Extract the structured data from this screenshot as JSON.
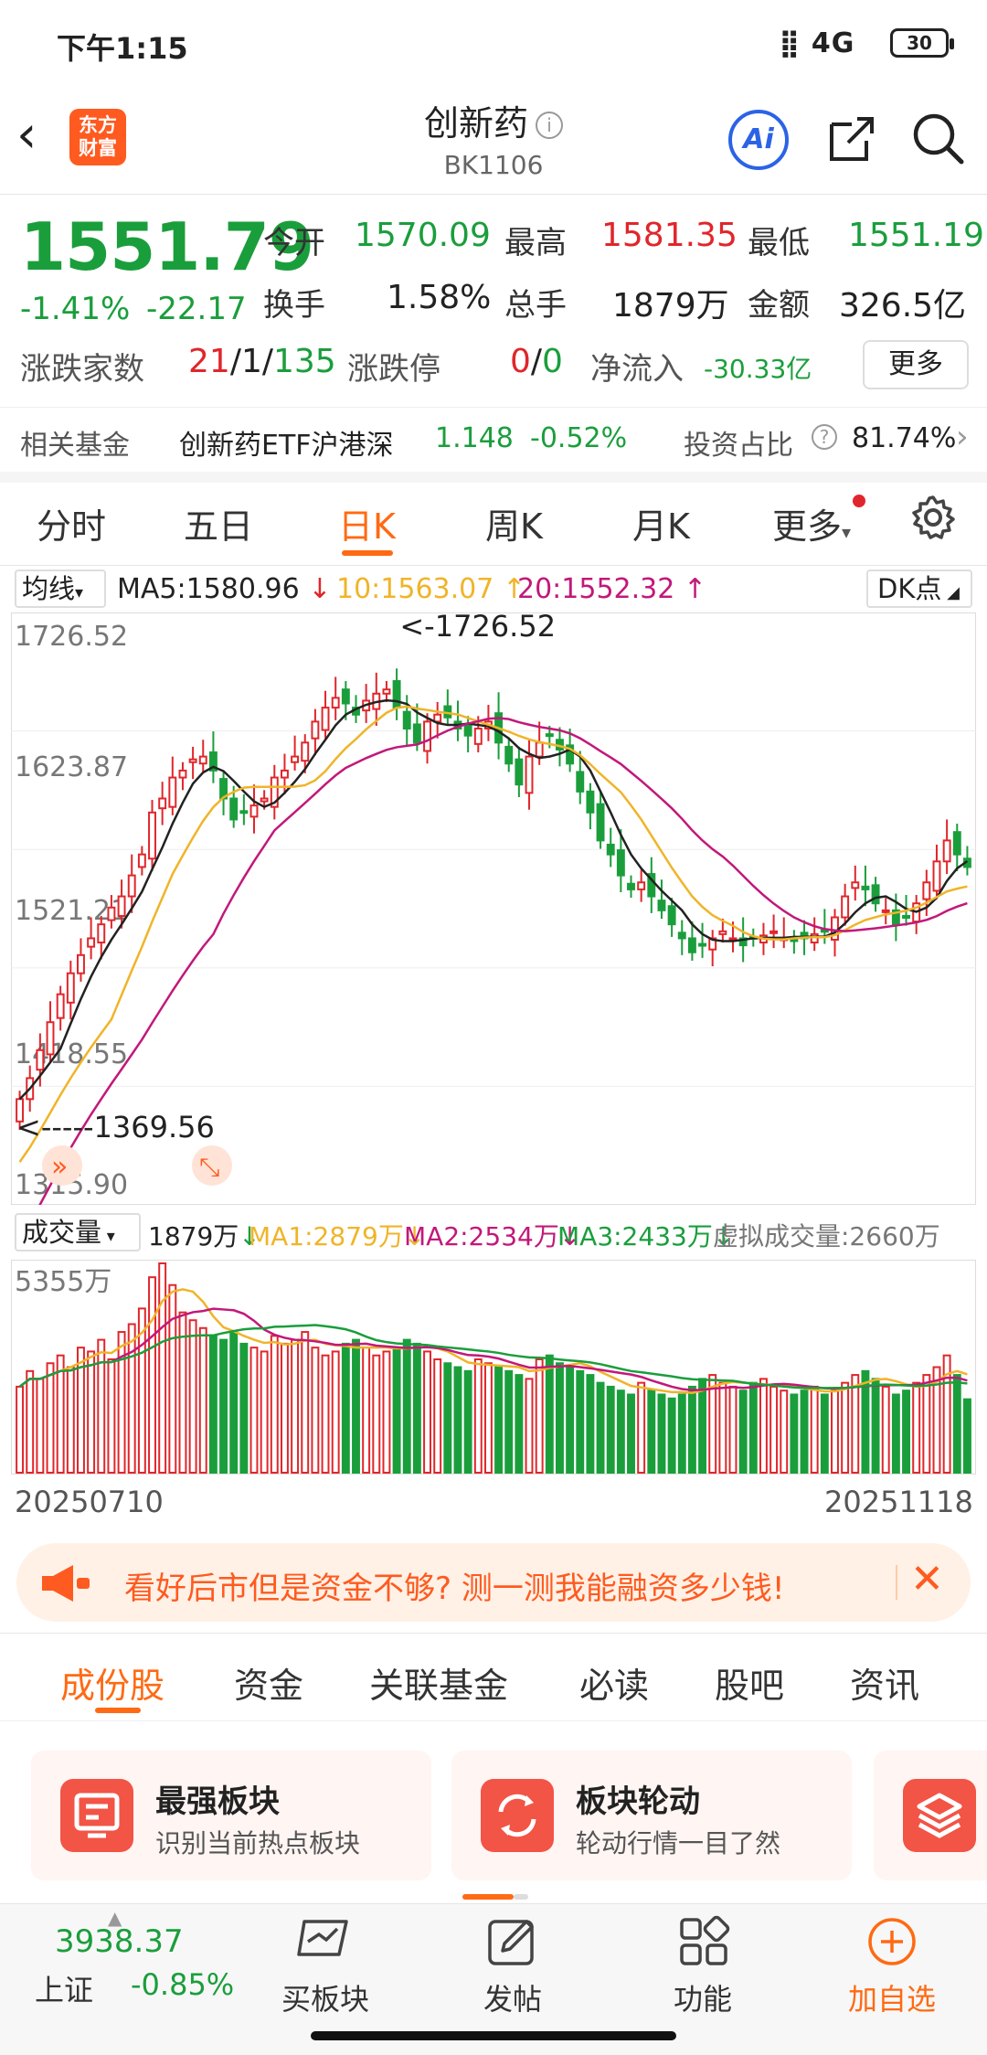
{
  "status_bar": {
    "time": "下午1:15",
    "network": "4G",
    "battery": "30"
  },
  "header": {
    "logo_text": "东方财富",
    "title": "创新药",
    "code": "BK1106",
    "ai_label": "Ai"
  },
  "quote": {
    "price": "1551.79",
    "change_pct": "-1.41%",
    "change": "-22.17",
    "open_label": "今开",
    "open": "1570.09",
    "high_label": "最高",
    "high": "1581.35",
    "low_label": "最低",
    "low": "1551.19",
    "turnover_label": "换手",
    "turnover": "1.58%",
    "volume_label": "总手",
    "volume": "1879万",
    "amount_label": "金额",
    "amount": "326.5亿",
    "updown_label": "涨跌家数",
    "up_count": "21",
    "flat_count": "1",
    "down_count": "135",
    "slash": "/",
    "limit_label": "涨跌停",
    "limit_up": "0",
    "limit_down": "0",
    "netflow_label": "净流入",
    "netflow": "-30.33亿",
    "more_label": "更多"
  },
  "fund": {
    "label": "相关基金",
    "name": "创新药ETF沪港深",
    "price": "1.148",
    "pct": "-0.52%",
    "ratio_label": "投资占比",
    "ratio": "81.74%"
  },
  "tabs": [
    "分时",
    "五日",
    "日K",
    "周K",
    "月K",
    "更多"
  ],
  "ma_row": {
    "select": "均线",
    "ma5": "MA5:1580.96",
    "ma10": "10:1563.07",
    "ma20": "20:1552.32",
    "dk": "DK点"
  },
  "chart_data": {
    "type": "candlestick",
    "title": "",
    "y_ticks": [
      "1726.52",
      "1623.87",
      "1521.21",
      "1418.55",
      "1315.90"
    ],
    "ylim": [
      1315.9,
      1726.52
    ],
    "annotations": {
      "max": "<-1726.52",
      "min": "<-----1369.56"
    },
    "x_start": "20250710",
    "x_end": "20251118",
    "closes": [
      1385,
      1400,
      1420,
      1440,
      1460,
      1475,
      1488,
      1500,
      1510,
      1522,
      1530,
      1545,
      1560,
      1590,
      1600,
      1615,
      1620,
      1628,
      1630,
      1620,
      1600,
      1585,
      1590,
      1595,
      1600,
      1615,
      1620,
      1630,
      1640,
      1655,
      1665,
      1672,
      1668,
      1660,
      1670,
      1675,
      1678,
      1665,
      1650,
      1640,
      1655,
      1660,
      1658,
      1650,
      1645,
      1650,
      1655,
      1640,
      1625,
      1610,
      1630,
      1640,
      1645,
      1635,
      1625,
      1605,
      1590,
      1570,
      1560,
      1545,
      1535,
      1540,
      1530,
      1520,
      1510,
      1500,
      1490,
      1495,
      1500,
      1505,
      1500,
      1495,
      1500,
      1502,
      1505,
      1500,
      1498,
      1500,
      1503,
      1505,
      1515,
      1530,
      1540,
      1535,
      1525,
      1520,
      1510,
      1515,
      1525,
      1540,
      1555,
      1570,
      1560,
      1551
    ],
    "volume_label": "成交量",
    "volume_total": "1879万",
    "vol_ma1": "MA1:2879万",
    "vol_ma2": "MA2:2534万",
    "vol_ma3": "MA3:2433万",
    "virtual_volume": "虚拟成交量:2660万",
    "vol_max_label": "5355万",
    "volumes": [
      2200,
      2600,
      2400,
      2800,
      3000,
      2700,
      3200,
      3100,
      3400,
      2900,
      3600,
      3800,
      4200,
      5000,
      5355,
      4800,
      4100,
      3900,
      3700,
      3500,
      3400,
      3600,
      3300,
      3200,
      3100,
      3500,
      3300,
      3400,
      3600,
      3200,
      3000,
      3100,
      3300,
      3400,
      3200,
      3000,
      3100,
      3200,
      3400,
      3300,
      3100,
      2900,
      2800,
      2700,
      2600,
      2900,
      2800,
      2700,
      2600,
      2500,
      2400,
      2900,
      3000,
      2800,
      2700,
      2600,
      2500,
      2300,
      2200,
      2100,
      2000,
      2300,
      2100,
      2000,
      1900,
      2000,
      2200,
      2400,
      2500,
      2300,
      2200,
      2100,
      2300,
      2400,
      2200,
      2100,
      2000,
      2100,
      2200,
      2000,
      2100,
      2300,
      2500,
      2600,
      2400,
      2200,
      2000,
      2100,
      2300,
      2500,
      2700,
      3000,
      2500,
      1879
    ]
  },
  "banner": {
    "text": "看好后市但是资金不够? 测一测我能融资多少钱!"
  },
  "bottom_tabs": [
    "成份股",
    "资金",
    "关联基金",
    "必读",
    "股吧",
    "资讯"
  ],
  "cards": [
    {
      "title": "最强板块",
      "subtitle": "识别当前热点板块"
    },
    {
      "title": "板块轮动",
      "subtitle": "轮动行情一目了然"
    }
  ],
  "nav": {
    "index_value": "3938.37",
    "index_name": "上证",
    "index_pct": "-0.85%",
    "items": [
      "买板块",
      "发帖",
      "功能",
      "加自选"
    ]
  },
  "colors": {
    "up": "#e0262b",
    "down": "#1a9e3c",
    "accent": "#ff6a13",
    "ma5": "#222222",
    "ma10": "#f0b429",
    "ma20": "#c2187a"
  }
}
